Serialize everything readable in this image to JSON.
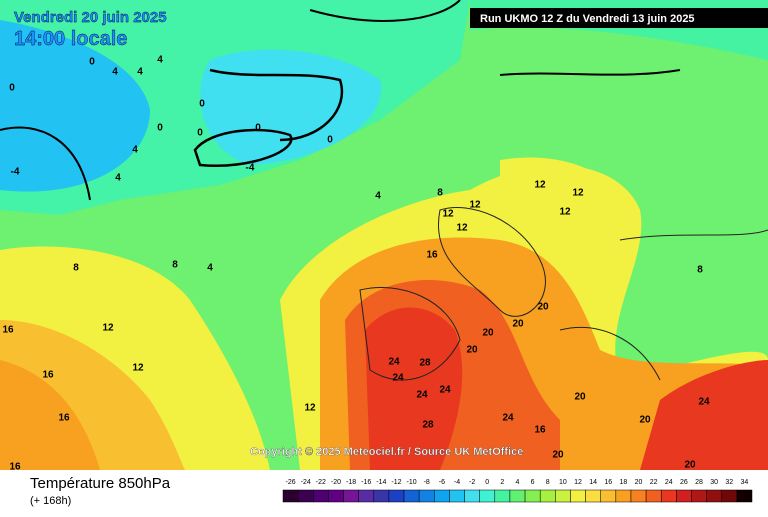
{
  "header": {
    "valid_date": "Vendredi 20 juin 2025",
    "local_time": "14:00 locale",
    "run": "Run UKMO 12 Z du Vendredi 13 juin 2025"
  },
  "map": {
    "credit": "Copyright © 2025 Meteociel.fr / Source UK MetOffice",
    "contour_labels": [
      0,
      4,
      4,
      4,
      0,
      0,
      0,
      0,
      -4,
      0,
      0,
      4,
      -4,
      4,
      4,
      8,
      12,
      12,
      12,
      12,
      12,
      12,
      16,
      8,
      8,
      4,
      16,
      12,
      12,
      16,
      16,
      16,
      20,
      20,
      20,
      20,
      24,
      28,
      24,
      24,
      28,
      24,
      20,
      16,
      20,
      24,
      20,
      24,
      20,
      8,
      12
    ]
  },
  "footer": {
    "title": "Température 850hPa",
    "subtitle": "(+ 168h)"
  },
  "legend": {
    "values": [
      -26,
      -24,
      -22,
      -20,
      -18,
      -16,
      -14,
      -12,
      -10,
      -8,
      -6,
      -4,
      -2,
      0,
      2,
      4,
      6,
      8,
      10,
      12,
      14,
      16,
      18,
      20,
      22,
      24,
      26,
      28,
      30,
      32,
      34
    ],
    "colors": [
      "#2a0030",
      "#3c0050",
      "#4e0070",
      "#620084",
      "#761496",
      "#5a2ca4",
      "#3a34aa",
      "#1e40c4",
      "#1462d6",
      "#1282e4",
      "#10a4f0",
      "#22c2f2",
      "#40e0f0",
      "#40f2d2",
      "#44f2a2",
      "#62f070",
      "#84f050",
      "#a6f040",
      "#caf040",
      "#f2f040",
      "#f8de40",
      "#f8c030",
      "#f8a020",
      "#f88020",
      "#f06020",
      "#e83820",
      "#d02020",
      "#b01818",
      "#901010",
      "#700808",
      "#100000"
    ]
  }
}
